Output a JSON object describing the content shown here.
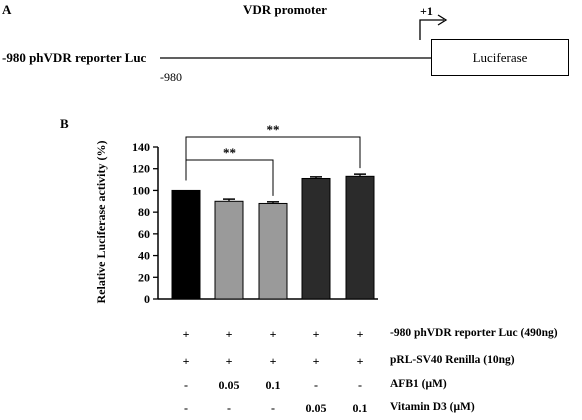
{
  "panel_a": {
    "label": "A",
    "promoter_title": "VDR promoter",
    "tss_label": "+1",
    "construct_label": "-980 phVDR reporter Luc",
    "start_position": "-980",
    "reporter_box": "Luciferase"
  },
  "panel_b": {
    "label": "B",
    "significance": [
      {
        "from": 0,
        "to": 2,
        "label": "**"
      },
      {
        "from": 0,
        "to": 4,
        "label": "**"
      }
    ]
  },
  "chart_data": {
    "type": "bar",
    "ylabel": "Relative Luciferase activity (%)",
    "ylim": [
      0,
      140
    ],
    "yticks": [
      "0",
      "20",
      "40",
      "60",
      "80",
      "100",
      "120",
      "140"
    ],
    "values": [
      100,
      90,
      88,
      111,
      113
    ],
    "errors": [
      0,
      2,
      1.5,
      1.5,
      2
    ],
    "bar_colors": [
      "#000000",
      "#9a9a9a",
      "#9a9a9a",
      "#2b2b2b",
      "#2b2b2b"
    ]
  },
  "conditions": [
    {
      "label": "-980 phVDR reporter Luc (490ng)",
      "values": [
        "+",
        "+",
        "+",
        "+",
        "+"
      ]
    },
    {
      "label": "pRL-SV40 Renilla (10ng)",
      "values": [
        "+",
        "+",
        "+",
        "+",
        "+"
      ]
    },
    {
      "label": "AFB1 (μM)",
      "values": [
        "-",
        "0.05",
        "0.1",
        "-",
        "-"
      ]
    },
    {
      "label": "Vitamin D3 (μM)",
      "values": [
        "-",
        "-",
        "-",
        "0.05",
        "0.1"
      ]
    }
  ]
}
